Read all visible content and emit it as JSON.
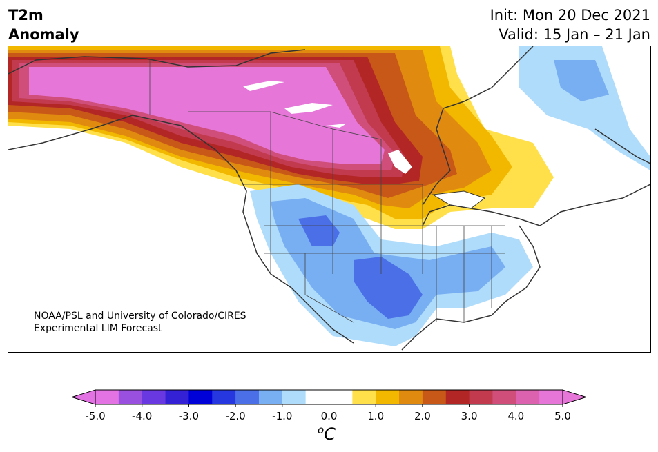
{
  "title": {
    "variable": "T2m",
    "type": "Anomaly",
    "init": "Init: Mon 20 Dec 2021",
    "valid": "Valid: 15 Jan – 21 Jan"
  },
  "credit": {
    "line1": "NOAA/PSL and University of Colorado/CIRES",
    "line2": "Experimental LIM Forecast"
  },
  "colorbar": {
    "unit_base": "C",
    "unit_sup": "o",
    "tick_labels": [
      "-5.0",
      "-4.0",
      "-3.0",
      "-2.0",
      "-1.0",
      "0.0",
      "1.0",
      "2.0",
      "3.0",
      "4.0",
      "5.0"
    ],
    "bins": [
      {
        "color": "#e373e3"
      },
      {
        "color": "#9a50de"
      },
      {
        "color": "#6a38e0"
      },
      {
        "color": "#3421d6"
      },
      {
        "color": "#0000d8"
      },
      {
        "color": "#2637df"
      },
      {
        "color": "#4a6fe6"
      },
      {
        "color": "#78aef2"
      },
      {
        "color": "#afdcfb"
      },
      {
        "color": "#ffffff"
      },
      {
        "color": "#ffffff"
      },
      {
        "color": "#ffe04a"
      },
      {
        "color": "#f2b800"
      },
      {
        "color": "#e08a10"
      },
      {
        "color": "#c85818"
      },
      {
        "color": "#b32626"
      },
      {
        "color": "#c23a4e"
      },
      {
        "color": "#cf4f7a"
      },
      {
        "color": "#dc62b0"
      },
      {
        "color": "#e676d8"
      }
    ],
    "under_color": "#e373e3",
    "over_color": "#e676d8"
  },
  "map": {
    "region": "North America",
    "land_outline_color": "#333333",
    "lake_color": "#ffffff"
  }
}
